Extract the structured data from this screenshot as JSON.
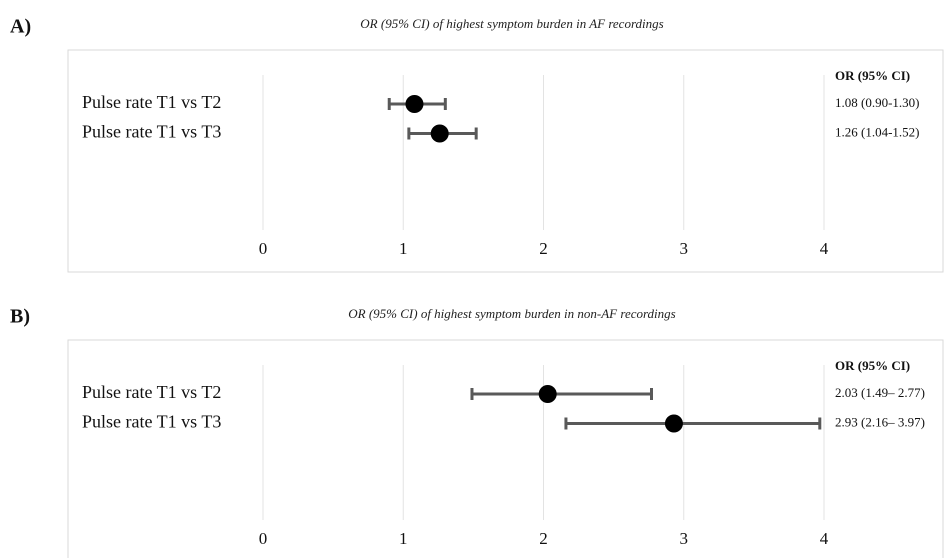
{
  "chart_data": [
    {
      "type": "forest",
      "panel_label": "A)",
      "title": "OR (95% CI) of highest symptom burden in AF recordings",
      "categories": [
        "Pulse rate T1 vs T2",
        "Pulse rate T1 vs T3"
      ],
      "values": [
        1.08,
        1.26
      ],
      "lower": [
        0.9,
        1.04
      ],
      "upper": [
        1.3,
        1.52
      ],
      "value_header": "OR (95% CI)",
      "value_labels": [
        "1.08 (0.90-1.30)",
        "1.26 (1.04-1.52)"
      ],
      "xlim": [
        0,
        4
      ],
      "xticks": [
        0,
        1,
        2,
        3,
        4
      ],
      "grid": true,
      "color": "#000000",
      "ci_color": "#595959"
    },
    {
      "type": "forest",
      "panel_label": "B)",
      "title": "OR (95% CI) of highest symptom burden in non-AF recordings",
      "categories": [
        "Pulse rate T1 vs T2",
        "Pulse rate T1 vs T3"
      ],
      "values": [
        2.03,
        2.93
      ],
      "lower": [
        1.49,
        2.16
      ],
      "upper": [
        2.77,
        3.97
      ],
      "value_header": "OR (95% CI)",
      "value_labels": [
        "2.03 (1.49– 2.77)",
        "2.93 (2.16– 3.97)"
      ],
      "xlim": [
        0,
        4
      ],
      "xticks": [
        0,
        1,
        2,
        3,
        4
      ],
      "grid": true,
      "color": "#000000",
      "ci_color": "#595959"
    }
  ]
}
